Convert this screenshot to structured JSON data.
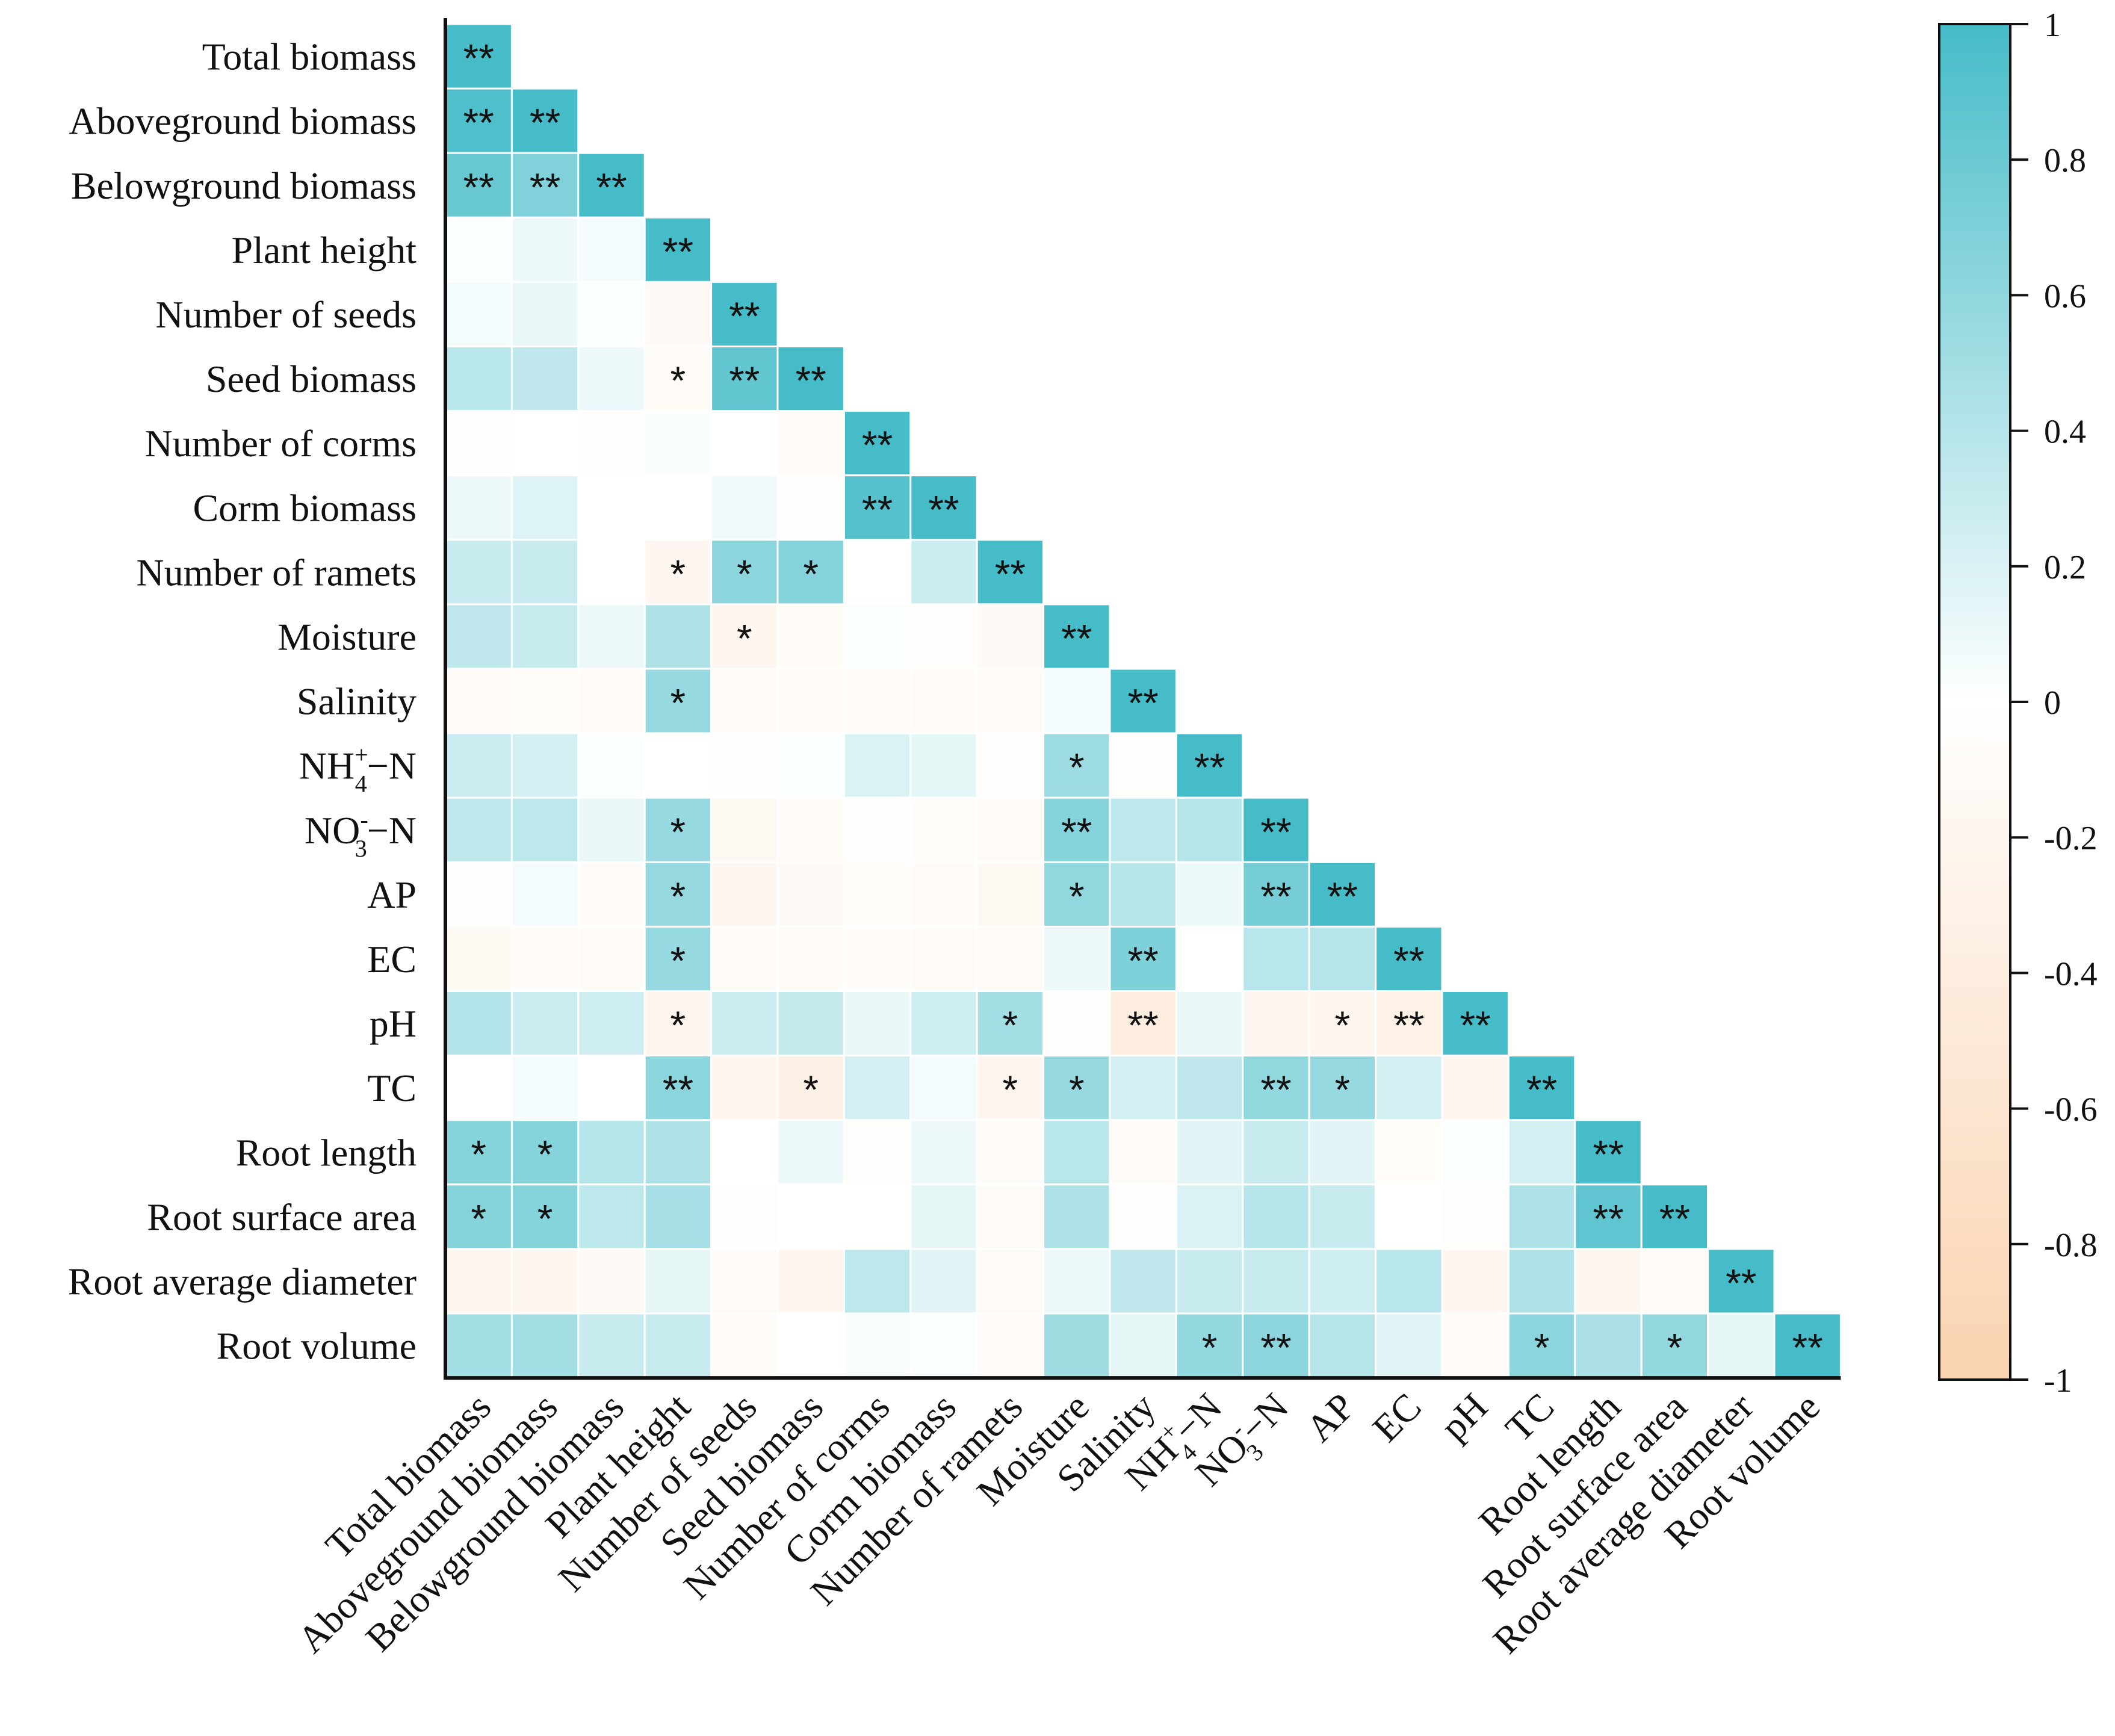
{
  "chart_data": {
    "type": "heatmap",
    "title": "",
    "variables": [
      "Total biomass",
      "Aboveground biomass",
      "Belowground biomass",
      "Plant height",
      "Number of seeds",
      "Seed biomass",
      "Number of corms",
      "Corm biomass",
      "Number of ramets",
      "Moisture",
      "Salinity",
      "NH4+−N",
      "NO3-−N",
      "AP",
      "EC",
      "pH",
      "TC",
      "Root length",
      "Root surface area",
      "Root average diameter",
      "Root volume"
    ],
    "label_parts": {
      "nh4": {
        "base": "NH",
        "sub": "4",
        "sup": "+",
        "tail": "−N"
      },
      "no3": {
        "base": "NO",
        "sub": "3",
        "sup": "-",
        "tail": "−N"
      }
    },
    "matrix": [
      [
        1
      ],
      [
        0.95,
        1
      ],
      [
        0.82,
        0.68,
        1
      ],
      [
        0.02,
        0.1,
        0.06,
        1
      ],
      [
        0.06,
        0.12,
        0.02,
        -0.14,
        1
      ],
      [
        0.38,
        0.34,
        0.1,
        -0.12,
        0.85,
        1
      ],
      [
        -0.02,
        0.0,
        -0.03,
        0.03,
        0.0,
        -0.1,
        1
      ],
      [
        0.1,
        0.18,
        0.0,
        -0.01,
        0.08,
        -0.02,
        0.92,
        1
      ],
      [
        0.3,
        0.3,
        0.0,
        -0.18,
        0.62,
        0.66,
        0.0,
        0.28,
        1
      ],
      [
        0.34,
        0.3,
        0.1,
        0.44,
        -0.2,
        -0.1,
        0.02,
        -0.02,
        -0.14,
        1
      ],
      [
        -0.12,
        -0.06,
        -0.1,
        0.56,
        -0.1,
        -0.1,
        -0.08,
        -0.1,
        -0.12,
        0.06,
        1
      ],
      [
        0.28,
        0.24,
        0.02,
        -0.01,
        -0.02,
        0.02,
        0.2,
        0.14,
        -0.02,
        0.54,
        -0.02,
        1
      ],
      [
        0.35,
        0.36,
        0.12,
        0.56,
        -0.15,
        -0.1,
        -0.04,
        -0.06,
        -0.12,
        0.66,
        0.36,
        0.4,
        1
      ],
      [
        -0.02,
        0.06,
        -0.08,
        0.56,
        -0.18,
        -0.13,
        -0.06,
        -0.08,
        -0.15,
        0.6,
        0.4,
        0.1,
        0.74,
        1
      ],
      [
        -0.15,
        -0.08,
        -0.12,
        0.56,
        -0.1,
        -0.1,
        -0.08,
        -0.11,
        -0.12,
        0.1,
        0.7,
        -0.01,
        0.38,
        0.4,
        1
      ],
      [
        0.42,
        0.28,
        0.26,
        -0.22,
        0.28,
        0.32,
        0.12,
        0.26,
        0.5,
        -0.04,
        -0.42,
        0.12,
        -0.18,
        -0.2,
        -0.3,
        1
      ],
      [
        0.0,
        0.06,
        -0.01,
        0.62,
        -0.2,
        -0.32,
        0.24,
        0.06,
        -0.22,
        0.56,
        0.24,
        0.34,
        0.6,
        0.56,
        0.24,
        -0.2,
        1
      ],
      [
        0.66,
        0.66,
        0.4,
        0.44,
        0.0,
        0.1,
        -0.05,
        0.1,
        -0.08,
        0.38,
        -0.08,
        0.16,
        0.3,
        0.16,
        -0.06,
        0.02,
        0.24,
        1
      ],
      [
        0.66,
        0.66,
        0.36,
        0.48,
        -0.04,
        0.0,
        0.0,
        0.14,
        -0.11,
        0.44,
        -0.02,
        0.2,
        0.4,
        0.3,
        0.0,
        -0.04,
        0.44,
        0.86,
        1
      ],
      [
        -0.2,
        -0.18,
        -0.14,
        0.14,
        -0.12,
        -0.2,
        0.36,
        0.16,
        -0.12,
        0.1,
        0.34,
        0.3,
        0.3,
        0.26,
        0.38,
        -0.2,
        0.44,
        -0.2,
        -0.12,
        1
      ],
      [
        0.5,
        0.5,
        0.3,
        0.3,
        -0.08,
        0.0,
        0.04,
        0.02,
        -0.08,
        0.52,
        0.14,
        0.58,
        0.62,
        0.4,
        0.16,
        -0.08,
        0.62,
        0.46,
        0.58,
        0.14,
        1
      ]
    ],
    "significance": [
      [
        "**"
      ],
      [
        "**",
        "**"
      ],
      [
        "**",
        "**",
        "**"
      ],
      [
        "",
        "",
        "",
        "**"
      ],
      [
        "",
        "",
        "",
        "",
        "**"
      ],
      [
        "",
        "",
        "",
        "*",
        "**",
        "**"
      ],
      [
        "",
        "",
        "",
        "",
        "",
        "",
        "**"
      ],
      [
        "",
        "",
        "",
        "",
        "",
        "",
        "**",
        "**"
      ],
      [
        "",
        "",
        "",
        "*",
        "*",
        "*",
        "",
        "",
        "**"
      ],
      [
        "",
        "",
        "",
        "",
        "*",
        "",
        "",
        "",
        "",
        "**"
      ],
      [
        "",
        "",
        "",
        "*",
        "",
        "",
        "",
        "",
        "",
        "",
        "**"
      ],
      [
        "",
        "",
        "",
        "",
        "",
        "",
        "",
        "",
        "",
        "*",
        "",
        "**"
      ],
      [
        "",
        "",
        "",
        "*",
        "",
        "",
        "",
        "",
        "",
        "**",
        "",
        "",
        "**"
      ],
      [
        "",
        "",
        "",
        "*",
        "",
        "",
        "",
        "",
        "",
        "*",
        "",
        "",
        "**",
        "**"
      ],
      [
        "",
        "",
        "",
        "*",
        "",
        "",
        "",
        "",
        "",
        "",
        "**",
        "",
        "",
        "",
        "**"
      ],
      [
        "",
        "",
        "",
        "*",
        "",
        "",
        "",
        "",
        "*",
        "",
        "**",
        "",
        "",
        "*",
        "**",
        "**"
      ],
      [
        "",
        "",
        "",
        "**",
        "",
        "*",
        "",
        "",
        "*",
        "*",
        "",
        "",
        "**",
        "*",
        "",
        "",
        "**"
      ],
      [
        "*",
        "*",
        "",
        "",
        "",
        "",
        "",
        "",
        "",
        "",
        "",
        "",
        "",
        "",
        "",
        "",
        "",
        "**"
      ],
      [
        "*",
        "*",
        "",
        "",
        "",
        "",
        "",
        "",
        "",
        "",
        "",
        "",
        "",
        "",
        "",
        "",
        "",
        "**",
        "**"
      ],
      [
        "",
        "",
        "",
        "",
        "",
        "",
        "",
        "",
        "",
        "",
        "",
        "",
        "",
        "",
        "",
        "",
        "",
        "",
        "",
        "**"
      ],
      [
        "",
        "",
        "",
        "",
        "",
        "",
        "",
        "",
        "",
        "",
        "",
        "*",
        "**",
        "",
        "",
        "",
        "*",
        "",
        "*",
        "",
        "**"
      ]
    ],
    "colorbar": {
      "min": -1,
      "max": 1,
      "ticks": [
        "1",
        "0.8",
        "0.6",
        "0.4",
        "0.2",
        "0",
        "-0.2",
        "-0.4",
        "-0.6",
        "-0.8",
        "-1"
      ],
      "positive_color": "#46bcc8",
      "zero_color": "#ffffff",
      "negative_color": "#fad3b0"
    }
  }
}
